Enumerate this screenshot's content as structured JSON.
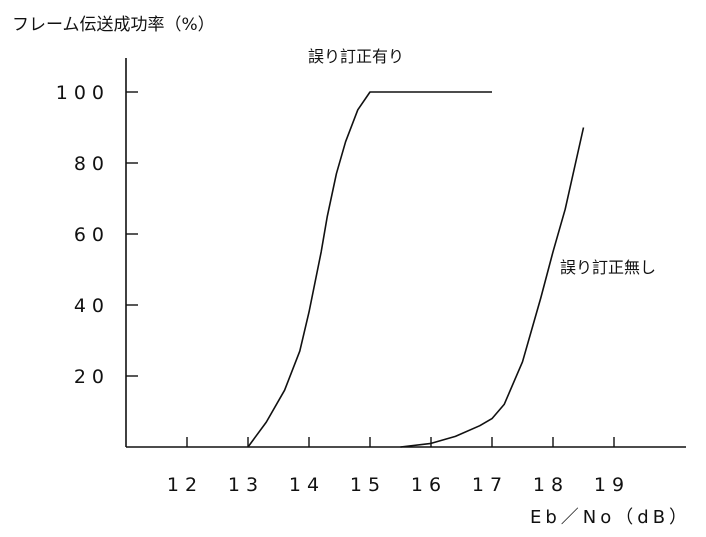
{
  "chart_data": {
    "type": "line",
    "ylabel": "フレーム伝送成功率（%）",
    "xlabel": "Eb／No（dB）",
    "x_ticks": [
      "12",
      "13",
      "14",
      "15",
      "16",
      "17",
      "18",
      "19"
    ],
    "y_ticks": [
      "20",
      "40",
      "60",
      "80",
      "100"
    ],
    "xlim": [
      11,
      20.2
    ],
    "ylim": [
      0,
      110
    ],
    "grid": false,
    "series": [
      {
        "name": "誤り訂正有り",
        "x": [
          13.0,
          13.3,
          13.6,
          13.85,
          14.0,
          14.2,
          14.3,
          14.45,
          14.6,
          14.8,
          15.0,
          16.0,
          17.0
        ],
        "y": [
          0,
          7,
          16,
          27,
          38,
          55,
          65,
          77,
          86,
          95,
          100,
          100,
          100
        ]
      },
      {
        "name": "誤り訂正無し",
        "x": [
          15.5,
          16.0,
          16.4,
          16.8,
          17.0,
          17.2,
          17.5,
          17.8,
          18.0,
          18.2,
          18.5
        ],
        "y": [
          0,
          1,
          3,
          6,
          8,
          12,
          24,
          42,
          55,
          67,
          90
        ]
      }
    ]
  }
}
